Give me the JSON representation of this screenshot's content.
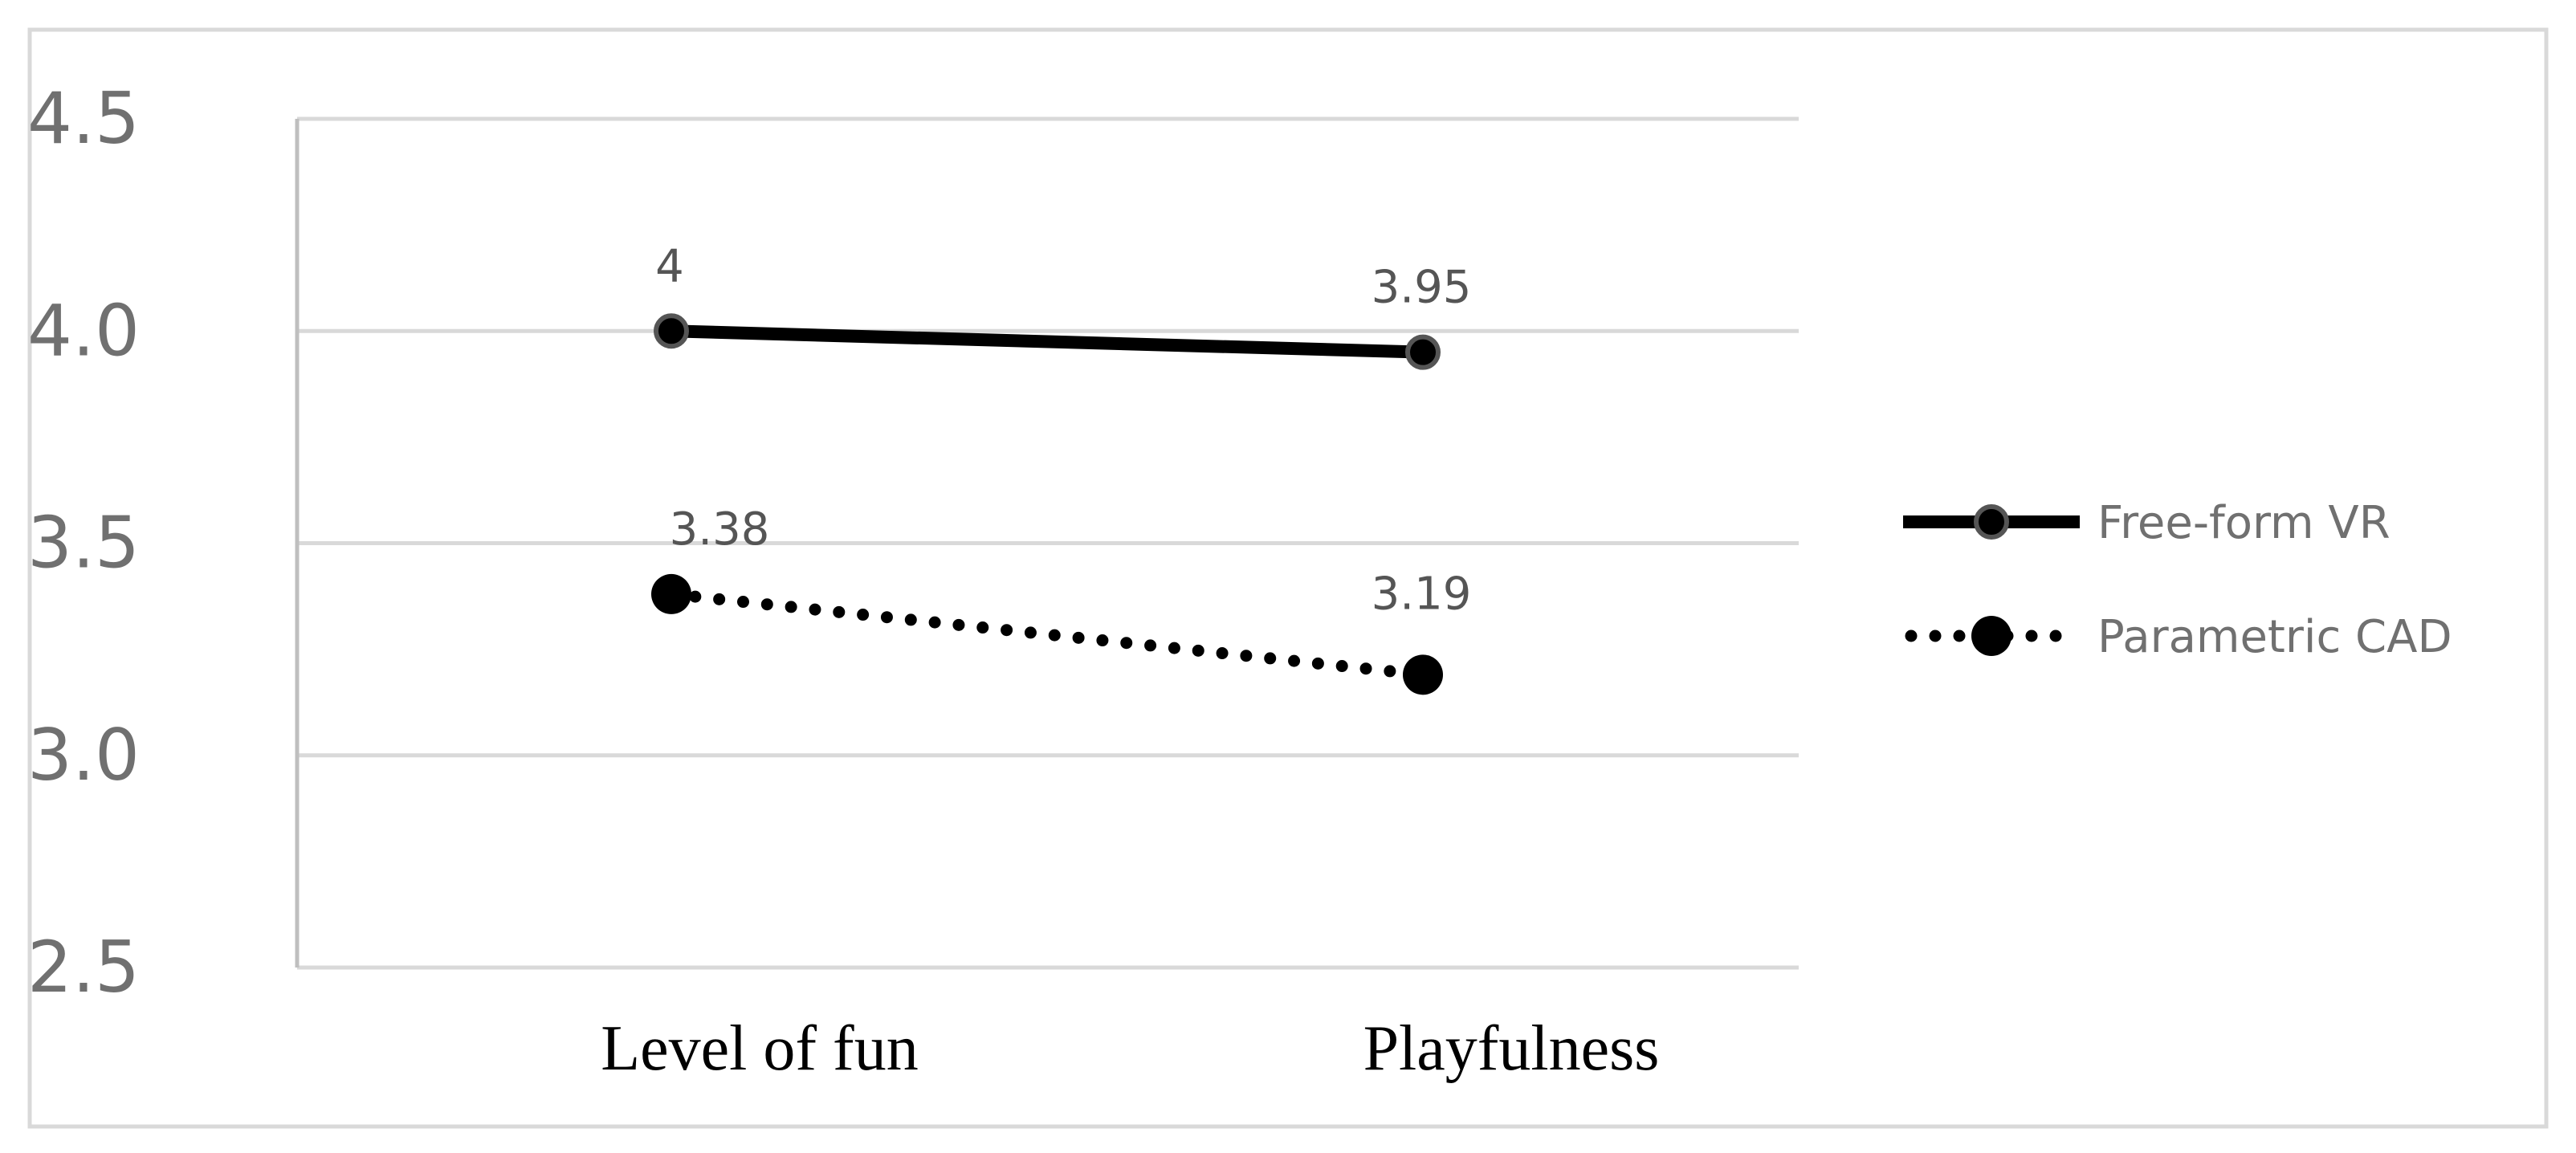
{
  "chart_data": {
    "type": "line",
    "categories": [
      "Level of fun",
      "Playfulness"
    ],
    "series": [
      {
        "name": "Free-form VR",
        "values": [
          4,
          3.95
        ],
        "labels": [
          "4",
          "3.95"
        ],
        "style": "solid",
        "color": "#000000",
        "marker_outline": "#555555"
      },
      {
        "name": "Parametric CAD",
        "values": [
          3.38,
          3.19
        ],
        "labels": [
          "3.38",
          "3.19"
        ],
        "style": "dotted",
        "color": "#000000",
        "marker_outline": "#000000"
      }
    ],
    "yticks": [
      "2.5",
      "3.0",
      "3.5",
      "4.0",
      "4.5"
    ],
    "ylim": [
      2.5,
      4.5
    ],
    "grid": true,
    "legend_position": "right",
    "title": "",
    "xlabel": "",
    "ylabel": ""
  }
}
